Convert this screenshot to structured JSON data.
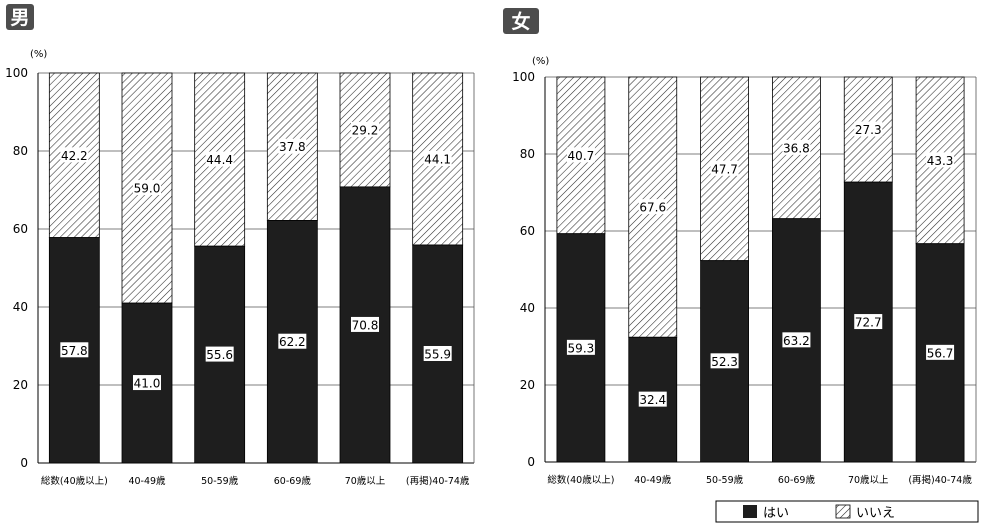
{
  "chart_data": [
    {
      "type": "bar",
      "stacked": true,
      "title": "男",
      "ylabel": "(%)",
      "ylim": [
        0,
        100
      ],
      "yticks": [
        0,
        20,
        40,
        60,
        80,
        100
      ],
      "grid": true,
      "categories": [
        "総数(40歳以上)",
        "40-49歳",
        "50-59歳",
        "60-69歳",
        "70歳以上",
        "(再掲)40-74歳"
      ],
      "series": [
        {
          "name": "はい",
          "values": [
            57.8,
            41.0,
            55.6,
            62.2,
            70.8,
            55.9
          ],
          "labels": [
            "57.8",
            "41.0",
            "55.6",
            "62.2",
            "70.8",
            "55.9"
          ]
        },
        {
          "name": "いいえ",
          "values": [
            42.2,
            59.0,
            44.4,
            37.8,
            29.2,
            44.1
          ],
          "labels": [
            "42.2",
            "59.0",
            "44.4",
            "37.8",
            "29.2",
            "44.1"
          ]
        }
      ]
    },
    {
      "type": "bar",
      "stacked": true,
      "title": "女",
      "ylabel": "(%)",
      "ylim": [
        0,
        100
      ],
      "yticks": [
        0,
        20,
        40,
        60,
        80,
        100
      ],
      "grid": true,
      "categories": [
        "総数(40歳以上)",
        "40-49歳",
        "50-59歳",
        "60-69歳",
        "70歳以上",
        "(再掲)40-74歳"
      ],
      "series": [
        {
          "name": "はい",
          "values": [
            59.3,
            32.4,
            52.3,
            63.2,
            72.7,
            56.7
          ],
          "labels": [
            "59.3",
            "32.4",
            "52.3",
            "63.2",
            "72.7",
            "56.7"
          ]
        },
        {
          "name": "いいえ",
          "values": [
            40.7,
            67.6,
            47.7,
            36.8,
            27.3,
            43.3
          ],
          "labels": [
            "40.7",
            "67.6",
            "47.7",
            "36.8",
            "27.3",
            "43.3"
          ]
        }
      ]
    }
  ],
  "legend": {
    "position": "bottom-right",
    "items": [
      {
        "label": "はい",
        "style": "solid"
      },
      {
        "label": "いいえ",
        "style": "hatched"
      }
    ]
  },
  "colors": {
    "bar_solid": "#1e1e1e",
    "hatch": "#2a2a2a",
    "grid": "#555555",
    "title_badge": "#4d4d4d",
    "title_text": "#ffffff"
  }
}
